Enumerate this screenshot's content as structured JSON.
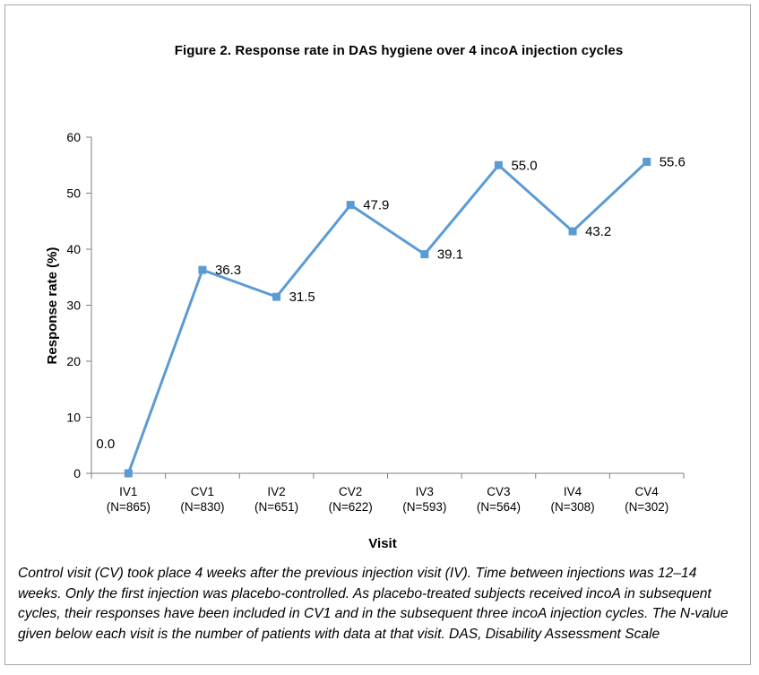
{
  "figure_title": "Figure 2.  Response rate in DAS hygiene over 4 incoA injection cycles",
  "caption": "Control visit (CV) took place 4 weeks after the previous injection visit (IV). Time between injections was 12–14 weeks. Only the first injection was placebo-controlled. As placebo-treated subjects received incoA in subsequent cycles, their responses have been included in CV1 and in the subsequent three incoA injection cycles. The N-value given below each visit is the number of patients with data at that visit. DAS, Disability Assessment Scale",
  "chart_data": {
    "type": "line",
    "title": "Figure 2.  Response rate in DAS hygiene over 4 incoA injection cycles",
    "xlabel": "Visit",
    "ylabel": "Response rate (%)",
    "ylim": [
      0,
      60
    ],
    "yticks": [
      0,
      10,
      20,
      30,
      40,
      50,
      60
    ],
    "grid": false,
    "legend": "none",
    "categories": [
      {
        "visit": "IV1",
        "n": "(N=865)"
      },
      {
        "visit": "CV1",
        "n": "(N=830)"
      },
      {
        "visit": "IV2",
        "n": "(N=651)"
      },
      {
        "visit": "CV2",
        "n": "(N=622)"
      },
      {
        "visit": "IV3",
        "n": "(N=593)"
      },
      {
        "visit": "CV3",
        "n": "(N=564)"
      },
      {
        "visit": "IV4",
        "n": "(N=308)"
      },
      {
        "visit": "CV4",
        "n": "(N=302)"
      }
    ],
    "series": [
      {
        "values": [
          0.0,
          36.3,
          31.5,
          47.9,
          39.1,
          55.0,
          43.2,
          55.6
        ],
        "data_labels": [
          "0.0",
          "36.3",
          "31.5",
          "47.9",
          "39.1",
          "55.0",
          "43.2",
          "55.6"
        ],
        "color": "#5b9bd5"
      }
    ]
  }
}
